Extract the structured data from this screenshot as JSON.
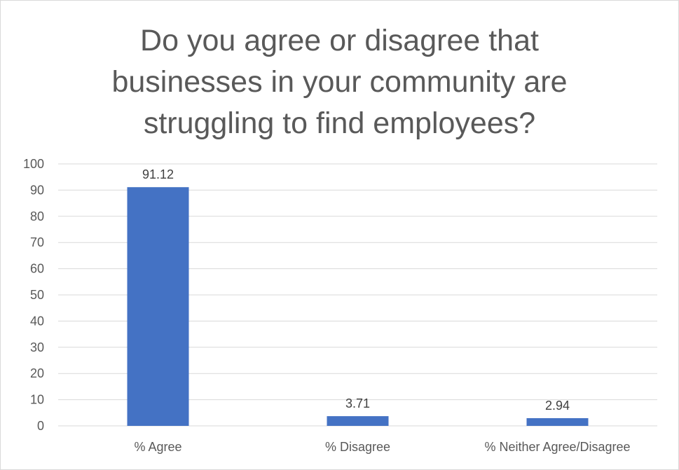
{
  "chart_data": {
    "type": "bar",
    "title": "Do you agree or disagree that\nbusinesses in your community are\nstruggling to find employees?",
    "categories": [
      "% Agree",
      "% Disagree",
      "% Neither Agree/Disagree"
    ],
    "values": [
      91.12,
      3.71,
      2.94
    ],
    "data_labels": [
      "91.12",
      "3.71",
      "2.94"
    ],
    "y_ticks": [
      "0",
      "10",
      "20",
      "30",
      "40",
      "50",
      "60",
      "70",
      "80",
      "90",
      "100"
    ],
    "ylim": [
      0,
      100
    ],
    "grid": true,
    "legend": "none",
    "colors": {
      "bar": "#4472c4",
      "grid": "#d9d9d9",
      "axis_text": "#595959"
    }
  }
}
